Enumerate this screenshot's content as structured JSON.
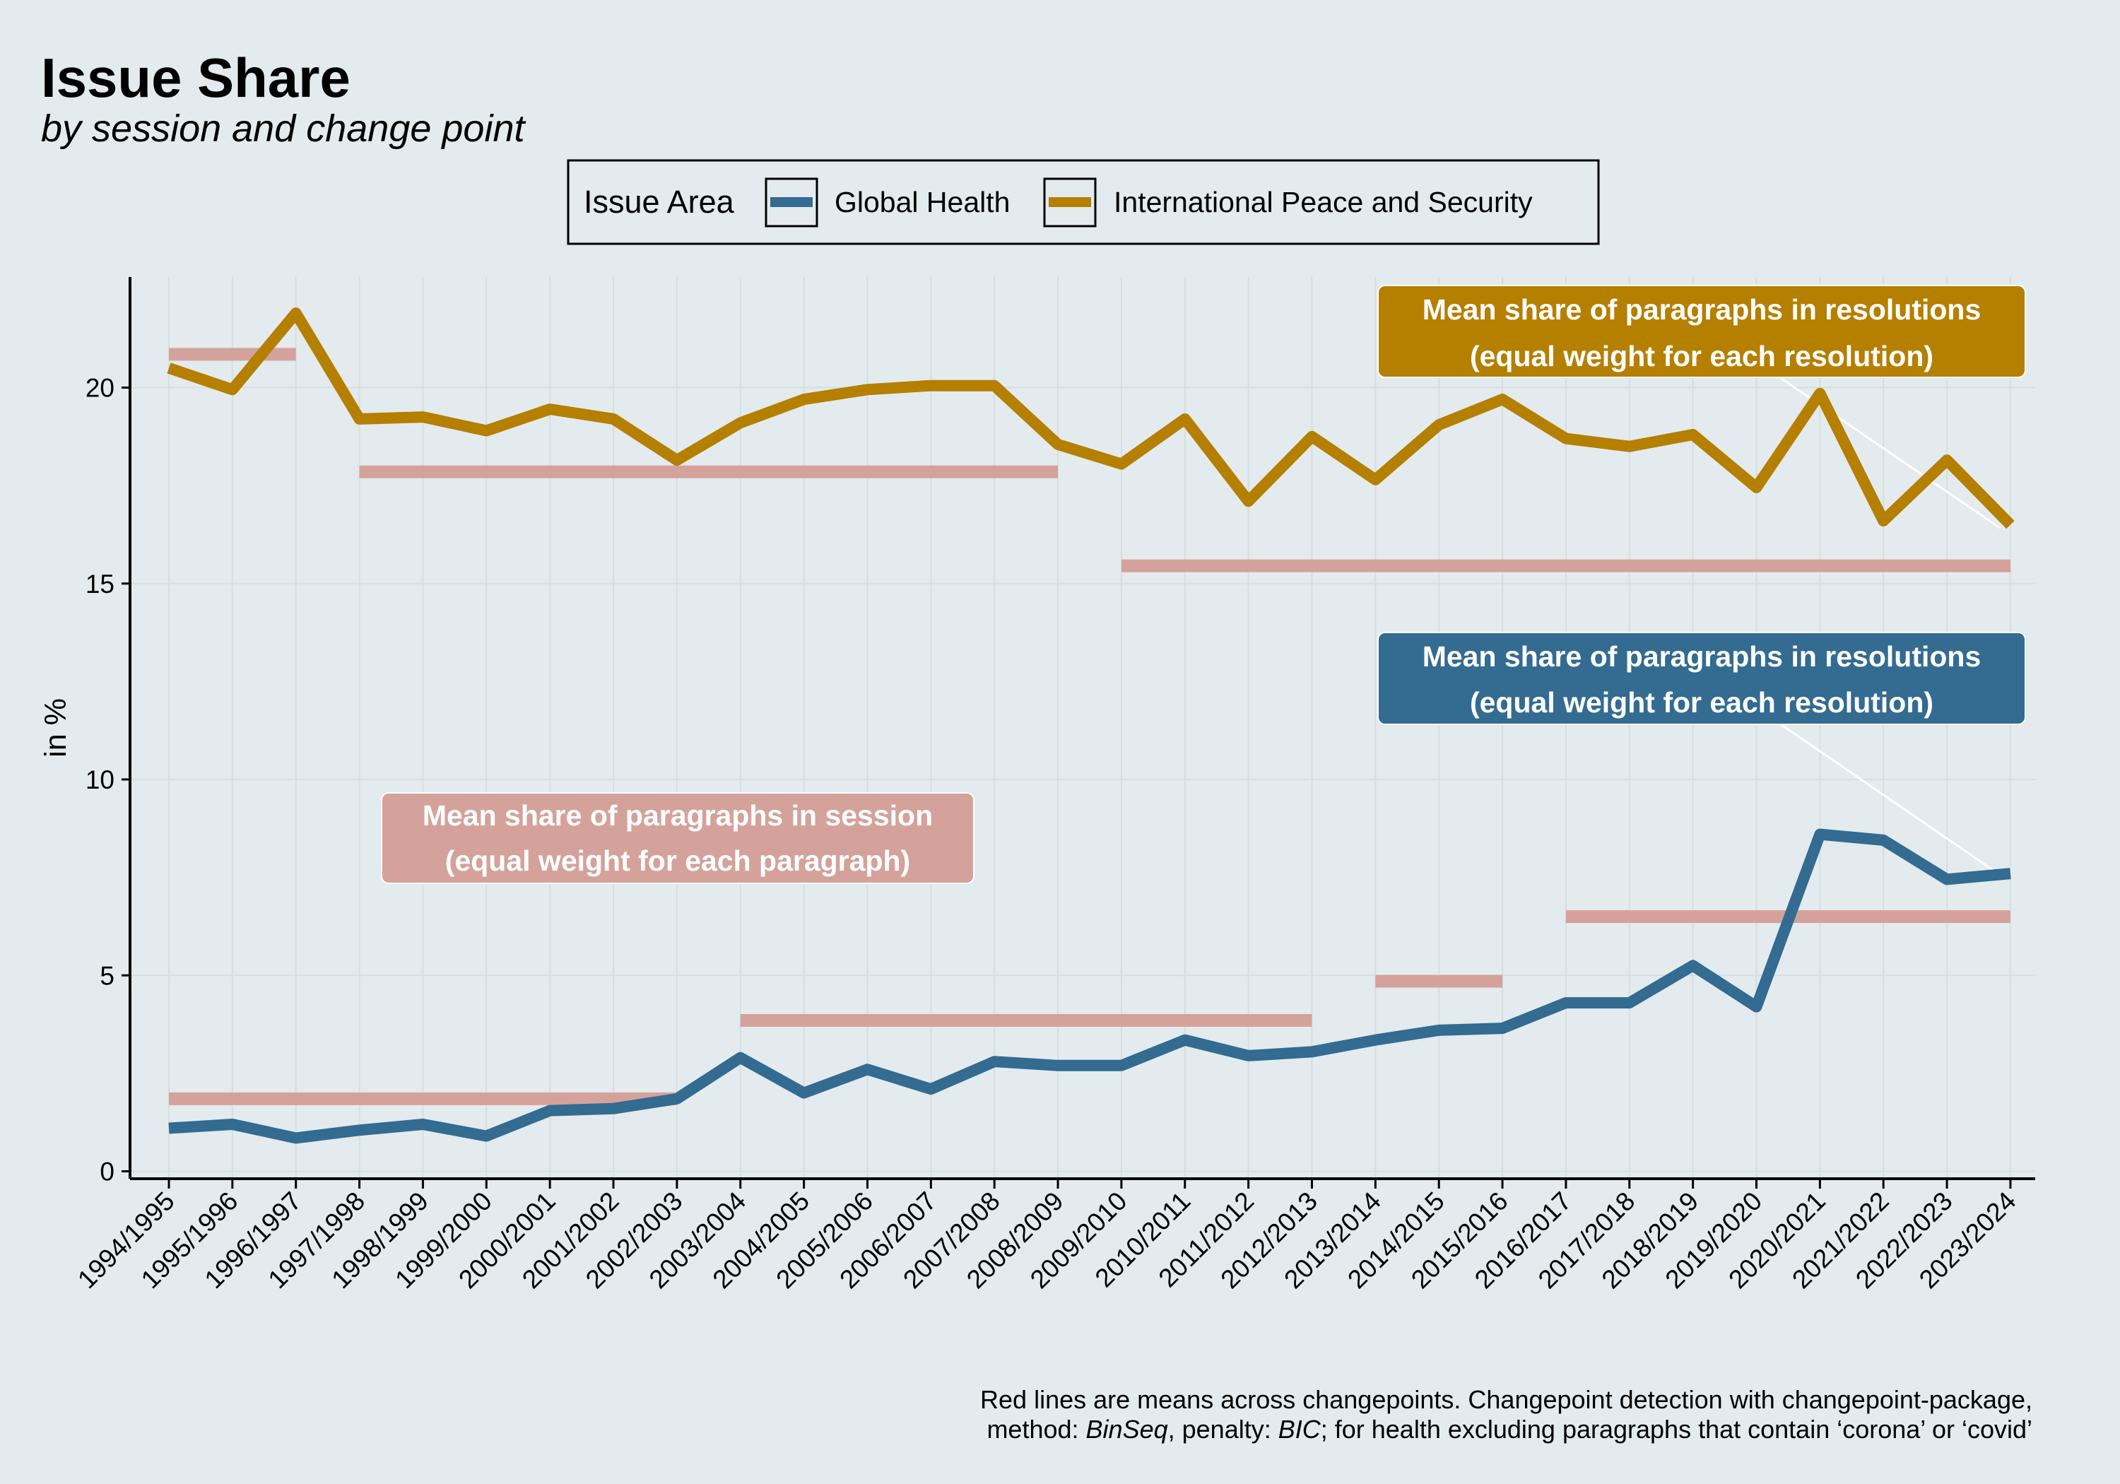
{
  "title": "Issue Share",
  "subtitle": "by session and change point",
  "legend": {
    "title": "Issue Area",
    "items": [
      "Global Health",
      "International Peace and Security"
    ]
  },
  "annotations": {
    "peace_line1": "Mean share of paragraphs in resolutions",
    "peace_line2": "(equal weight for each resolution)",
    "health_line1": "Mean share of paragraphs in resolutions",
    "health_line2": "(equal weight for each resolution)",
    "session_line1": "Mean share of paragraphs in session",
    "session_line2": "(equal weight for each paragraph)"
  },
  "caption": {
    "line1": "Red lines are means across changepoints. Changepoint detection with changepoint-package,",
    "line2_a": "method: ",
    "line2_b": "BinSeq",
    "line2_c": ", penalty: ",
    "line2_d": "BIC",
    "line2_e": "; for health excluding paragraphs that contain ‘corona’ or ‘covid’"
  },
  "colors": {
    "background": "#e3ebee",
    "global_health": "#336b91",
    "peace_security": "#b57f00",
    "changepoint": "#d4a29a"
  },
  "chart_data": {
    "type": "line",
    "title": "Issue Share",
    "subtitle": "by session and change point",
    "xlabel": "",
    "ylabel": "in %",
    "ylim": [
      -0.2,
      22.8
    ],
    "yticks": [
      0,
      5,
      10,
      15,
      20
    ],
    "grid": true,
    "legend_position": "top",
    "categories": [
      "1994/1995",
      "1995/1996",
      "1996/1997",
      "1997/1998",
      "1998/1999",
      "1999/2000",
      "2000/2001",
      "2001/2002",
      "2002/2003",
      "2003/2004",
      "2004/2005",
      "2005/2006",
      "2006/2007",
      "2007/2008",
      "2008/2009",
      "2009/2010",
      "2010/2011",
      "2011/2012",
      "2012/2013",
      "2013/2014",
      "2014/2015",
      "2015/2016",
      "2016/2017",
      "2017/2018",
      "2018/2019",
      "2019/2020",
      "2020/2021",
      "2021/2022",
      "2022/2023",
      "2023/2024"
    ],
    "series": [
      {
        "name": "Global Health",
        "values": [
          1.1,
          1.2,
          0.85,
          1.05,
          1.2,
          0.9,
          1.55,
          1.6,
          1.85,
          2.9,
          2.0,
          2.6,
          2.1,
          2.8,
          2.7,
          2.7,
          3.35,
          2.95,
          3.05,
          3.35,
          3.6,
          3.65,
          4.3,
          4.3,
          5.25,
          4.2,
          8.6,
          8.45,
          7.45,
          7.6
        ]
      },
      {
        "name": "International Peace and Security",
        "values": [
          20.5,
          19.95,
          21.9,
          19.2,
          19.25,
          18.9,
          19.45,
          19.2,
          18.15,
          19.1,
          19.7,
          19.95,
          20.05,
          20.05,
          18.55,
          18.05,
          19.2,
          17.1,
          18.75,
          17.65,
          19.05,
          19.7,
          18.7,
          18.5,
          18.8,
          17.45,
          19.85,
          16.6,
          18.15,
          16.5
        ]
      }
    ],
    "changepoint_means": [
      {
        "from": "1994/1995",
        "to": "1996/1997",
        "value": 20.85
      },
      {
        "from": "1997/1998",
        "to": "2008/2009",
        "value": 17.85
      },
      {
        "from": "2009/2010",
        "to": "2023/2024",
        "value": 15.45
      },
      {
        "from": "1994/1995",
        "to": "2002/2003",
        "value": 1.85
      },
      {
        "from": "2003/2004",
        "to": "2012/2013",
        "value": 3.85
      },
      {
        "from": "2013/2014",
        "to": "2015/2016",
        "value": 4.85
      },
      {
        "from": "2016/2017",
        "to": "2023/2024",
        "value": 6.5
      }
    ]
  }
}
